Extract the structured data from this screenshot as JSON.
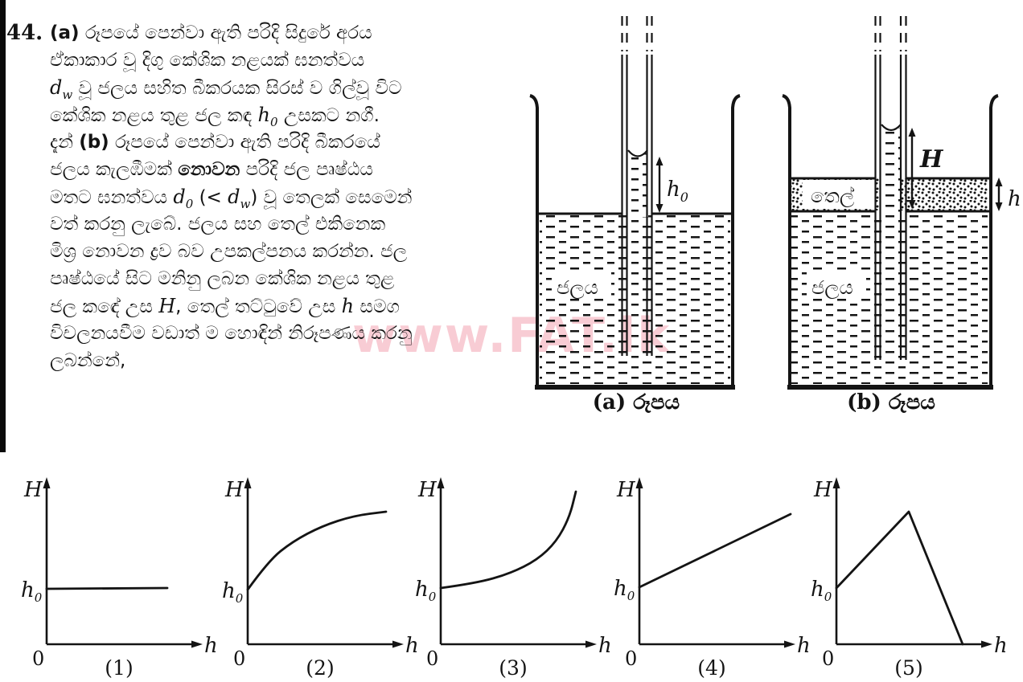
{
  "page": {
    "watermark_text": "www.FAT.lk",
    "ink_color": "#141414",
    "watermark_color": "#F299AA"
  },
  "question": {
    "number": "44.",
    "lines": [
      [
        {
          "b": "(a)"
        },
        {
          "t": " රූපයේ පෙන්වා ඇති පරිදි සිදුරේ අරය"
        }
      ],
      [
        {
          "t": "ඒකාකාර වූ දිගු කේශික නළයක් ඝනත්වය"
        }
      ],
      [
        {
          "i": "d"
        },
        {
          "sub": "w"
        },
        {
          "t": " වූ ජලය සහිත බීකරයක සිරස් ව ගිල්වූ විට"
        }
      ],
      [
        {
          "t": "කේශික නළය තුළ ජල කඳ "
        },
        {
          "i": "h"
        },
        {
          "sub": "0"
        },
        {
          "t": " උසකට නගී."
        }
      ],
      [
        {
          "t": "දැන් "
        },
        {
          "b": "(b)"
        },
        {
          "t": " රූපයේ පෙන්වා ඇති පරිදි බීකරයේ"
        }
      ],
      [
        {
          "t": "ජලය කැලඹීමක් "
        },
        {
          "b": "නොවන"
        },
        {
          "t": " පරිදි ජල පෘෂ්ඨය"
        }
      ],
      [
        {
          "t": "මතට ඝනත්වය "
        },
        {
          "i": "d"
        },
        {
          "sub": "0"
        },
        {
          "t": " (< "
        },
        {
          "i": "d"
        },
        {
          "sub": "w"
        },
        {
          "t": ") වූ තෙලක් සෙමෙන්"
        }
      ],
      [
        {
          "t": "වත් කරනු ලැබේ. ජලය සහ තෙල් එකිනෙක"
        }
      ],
      [
        {
          "t": "මිශ්‍ර නොවන ද්‍රව බව උපකල්පනය කරන්න. ජල"
        }
      ],
      [
        {
          "t": "පෘෂ්ඨයේ සිට මනිනු ලබන කේශික නළය තුළ"
        }
      ],
      [
        {
          "t": "ජල කඳේ උස "
        },
        {
          "i": "H"
        },
        {
          "t": ", තෙල් තට්ටුවේ උස "
        },
        {
          "i": "h"
        },
        {
          "t": " සමග"
        }
      ],
      [
        {
          "t": "විචලනයවීම වඩාත් ම හොඳින් නිරූපණය කරනු"
        }
      ],
      [
        {
          "t": "ලබන්නේ,"
        }
      ]
    ]
  },
  "figure_a": {
    "caption": "(a) රූපය",
    "water_label": "ජලය",
    "h0": {
      "base": "h",
      "sub": "0"
    }
  },
  "figure_b": {
    "caption": "(b) රූපය",
    "water_label": "ජලය",
    "oil_label": "තෙල්",
    "H_label": "H",
    "h_label": "h"
  },
  "graphs": {
    "y_axis_label": "H",
    "x_axis_label": "h",
    "origin_label": "0",
    "y_tick": {
      "base": "h",
      "sub": "0"
    },
    "items": [
      {
        "caption": "(1)",
        "trend": "constant: H = h0 for all h",
        "smooth": false,
        "points": [
          [
            40,
            153
          ],
          [
            190,
            152
          ]
        ]
      },
      {
        "caption": "(2)",
        "trend": "rises from h0 with decreasing slope (saturating)",
        "smooth": true,
        "points": [
          [
            40,
            154
          ],
          [
            66,
            118
          ],
          [
            96,
            94
          ],
          [
            132,
            75
          ],
          [
            172,
            62
          ],
          [
            212,
            57
          ]
        ]
      },
      {
        "caption": "(3)",
        "trend": "rises from h0 slowly then increasingly steeply",
        "smooth": true,
        "points": [
          [
            40,
            152
          ],
          [
            84,
            146
          ],
          [
            126,
            134
          ],
          [
            160,
            117
          ],
          [
            184,
            94
          ],
          [
            200,
            64
          ],
          [
            208,
            32
          ]
        ]
      },
      {
        "caption": "(4)",
        "trend": "rises linearly from h0",
        "smooth": false,
        "points": [
          [
            40,
            151
          ],
          [
            228,
            60
          ]
        ]
      },
      {
        "caption": "(5)",
        "trend": "rises linearly from h0 to a peak, then falls linearly to zero",
        "smooth": false,
        "points": [
          [
            40,
            152
          ],
          [
            130,
            57
          ],
          [
            197,
            222
          ]
        ]
      }
    ]
  },
  "chart_data": [
    {
      "type": "line",
      "title": "(1)",
      "xlabel": "h",
      "ylabel": "H",
      "start_y": "h0",
      "shape": "constant",
      "description": "H remains equal to h0 as oil-layer depth h increases"
    },
    {
      "type": "line",
      "title": "(2)",
      "xlabel": "h",
      "ylabel": "H",
      "start_y": "h0",
      "shape": "increasing, concave down",
      "description": "H rises from h0 with decreasing slope, levelling off"
    },
    {
      "type": "line",
      "title": "(3)",
      "xlabel": "h",
      "ylabel": "H",
      "start_y": "h0",
      "shape": "increasing, concave up",
      "description": "H rises from h0 slowly at first, then ever more steeply"
    },
    {
      "type": "line",
      "title": "(4)",
      "xlabel": "h",
      "ylabel": "H",
      "start_y": "h0",
      "shape": "linear increasing",
      "description": "H rises from h0 as a straight line"
    },
    {
      "type": "line",
      "title": "(5)",
      "xlabel": "h",
      "ylabel": "H",
      "start_y": "h0",
      "shape": "rise then fall",
      "description": "H rises linearly from h0 to a peak, then drops linearly to H = 0"
    }
  ]
}
